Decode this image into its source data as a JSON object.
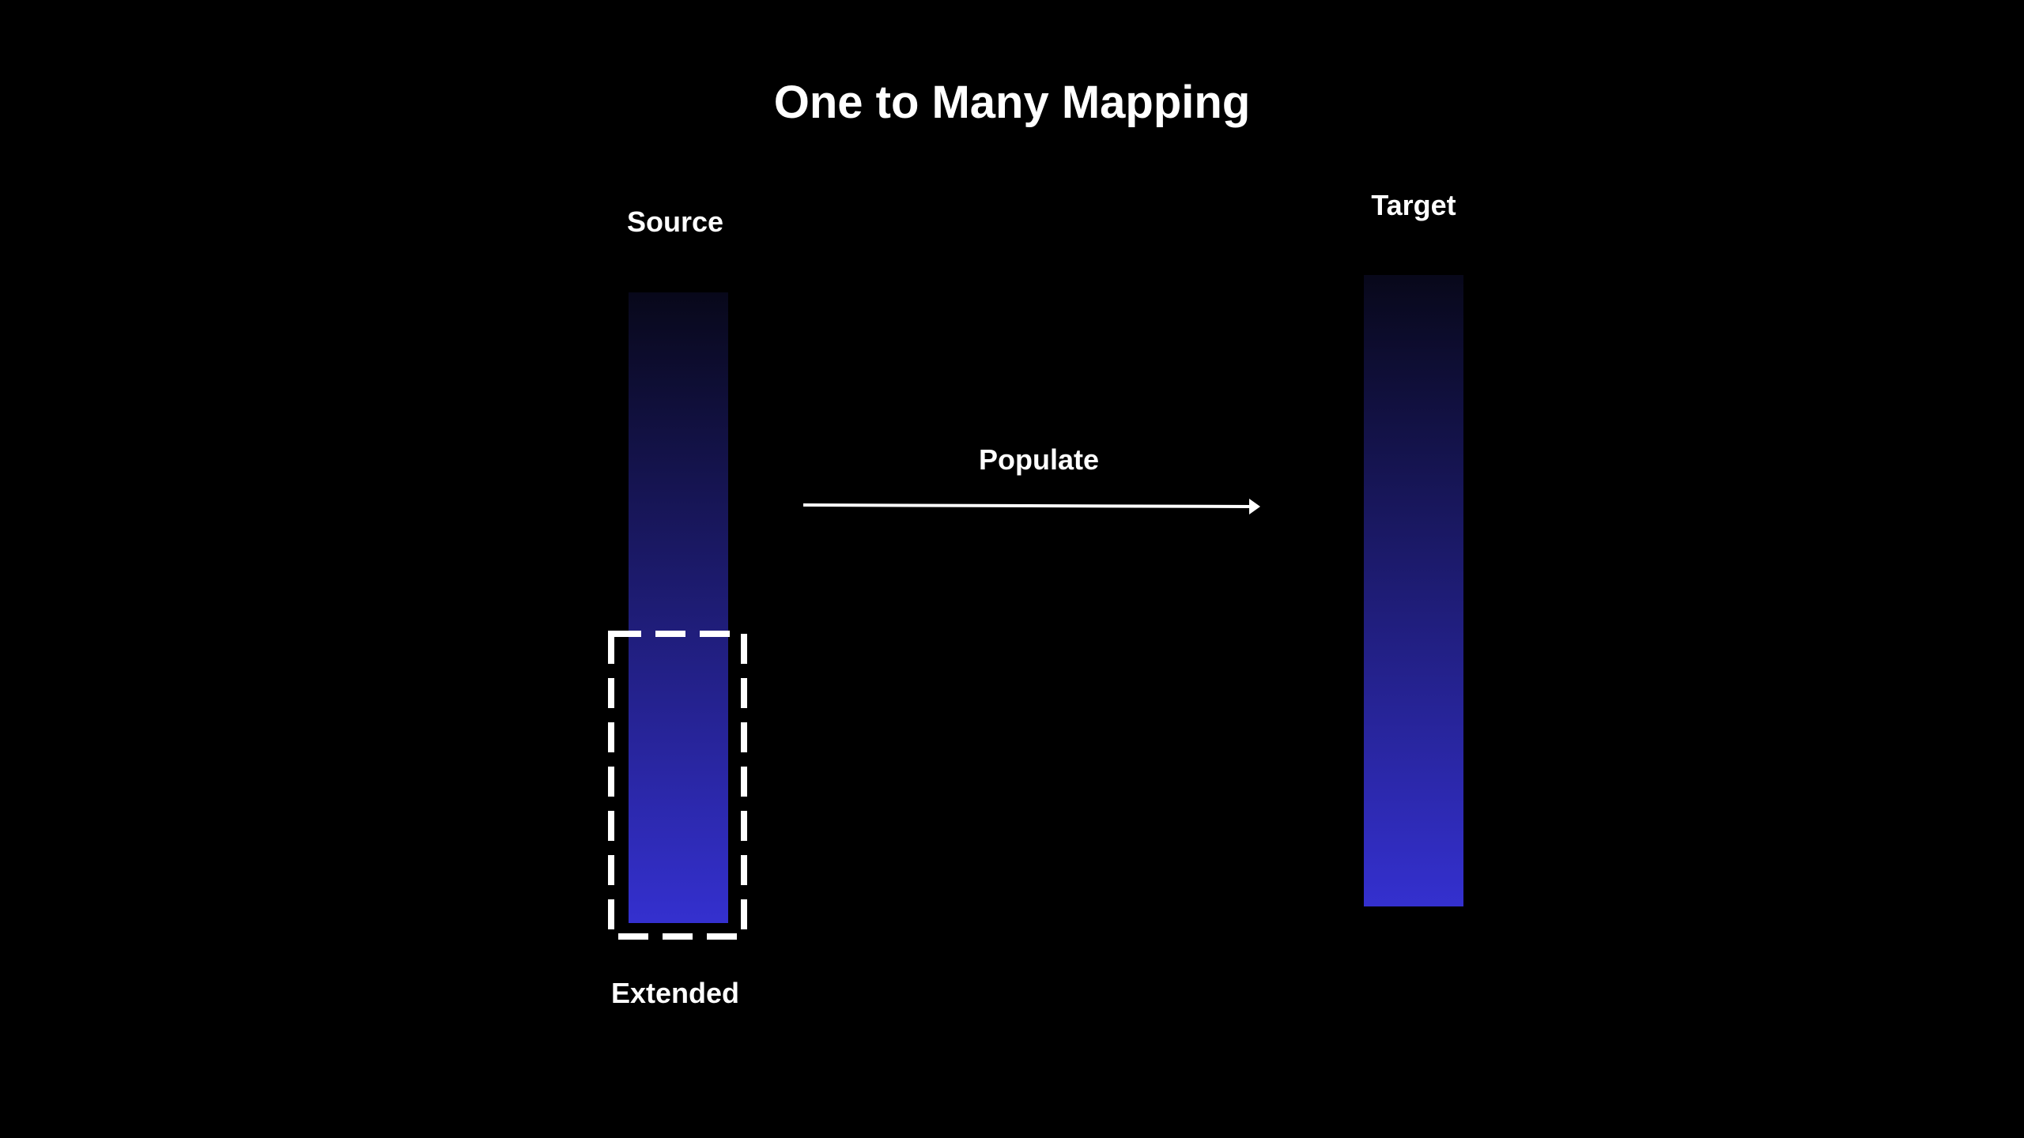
{
  "diagram": {
    "title": "One to Many Mapping",
    "source": {
      "label": "Source"
    },
    "target": {
      "label": "Target"
    },
    "connector": {
      "label": "Populate"
    },
    "extended": {
      "label": "Extended"
    },
    "colors": {
      "background": "#000000",
      "text": "#ffffff",
      "column_gradient_top": "#08081a",
      "column_gradient_bottom": "#3430cf",
      "extended_border": "#ffffff",
      "arrow": "#ffffff"
    }
  }
}
